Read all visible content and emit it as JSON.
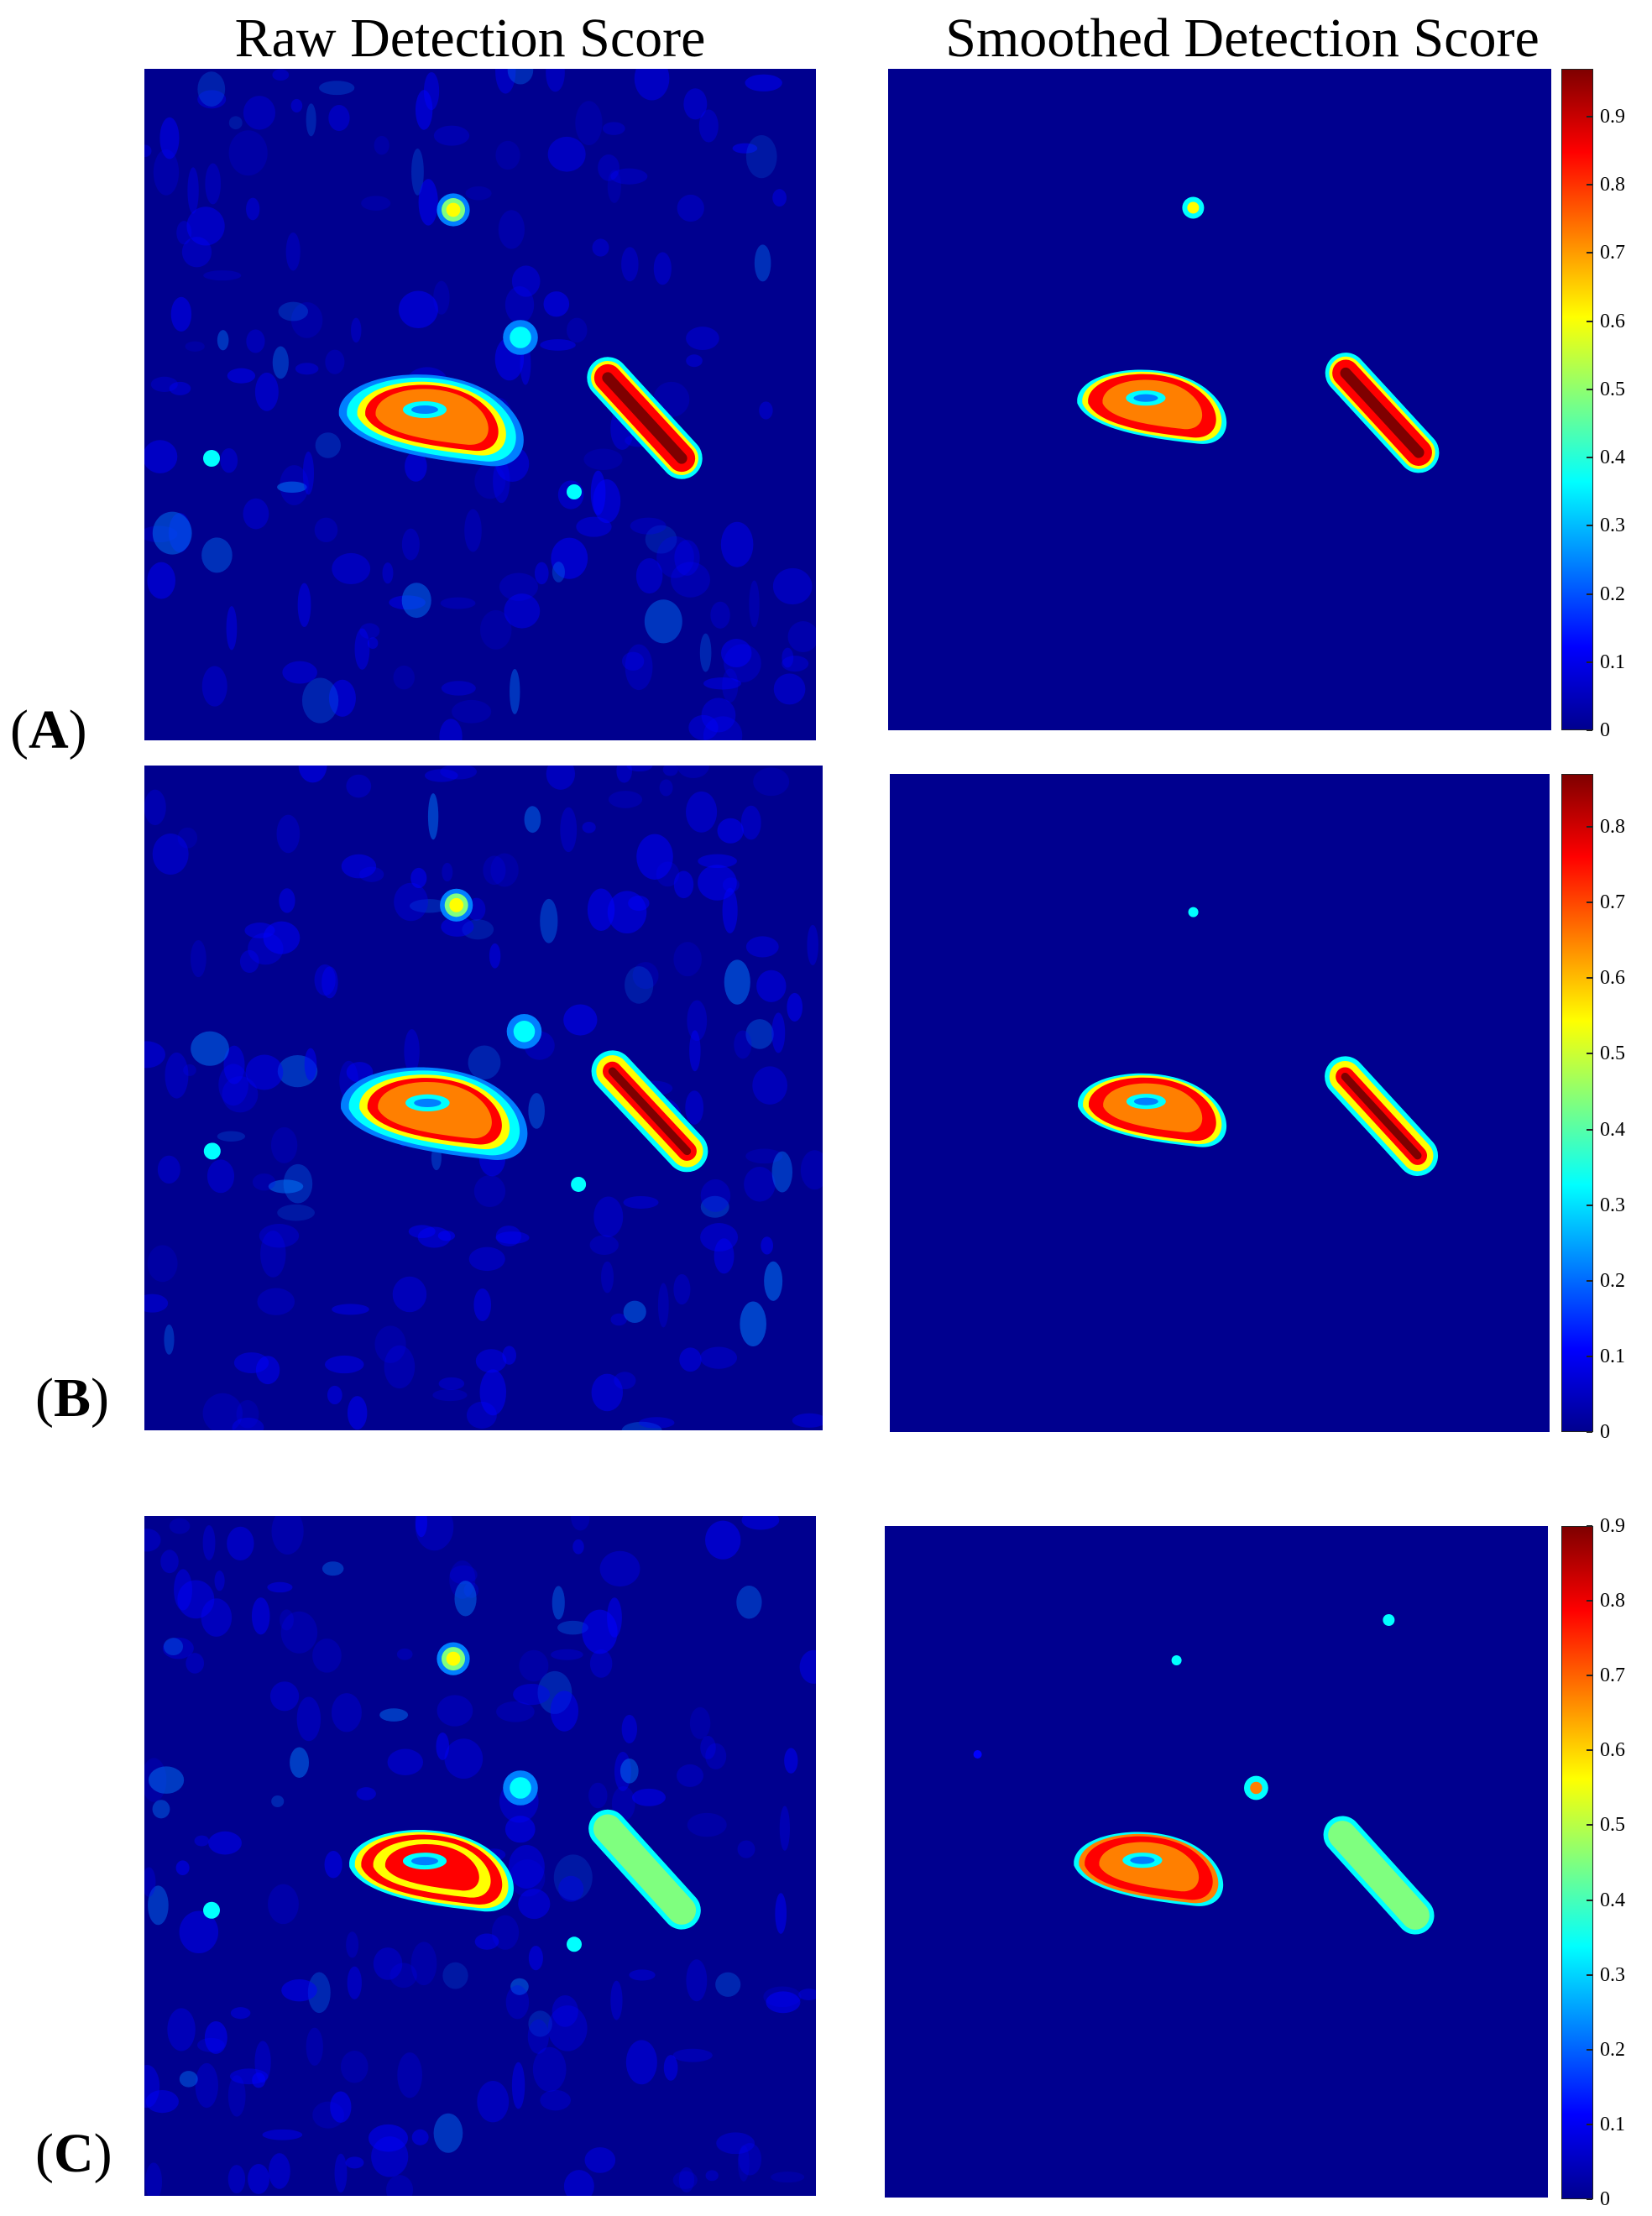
{
  "column_titles": {
    "raw": "Raw Detection Score",
    "smoothed": "Smoothed Detection Score"
  },
  "panels": [
    {
      "id": "A",
      "paren_open": "(",
      "letter": "A",
      "paren_close": ")"
    },
    {
      "id": "B",
      "paren_open": "(",
      "letter": "B",
      "paren_close": ")"
    },
    {
      "id": "C",
      "paren_open": "(",
      "letter": "C",
      "paren_close": ")"
    }
  ],
  "colormap": [
    "#00008f",
    "#0000ff",
    "#007fff",
    "#00ffff",
    "#7fff7f",
    "#ffff00",
    "#ff7f00",
    "#ff0000",
    "#7f0000"
  ],
  "chart_data": [
    {
      "type": "heatmap",
      "panel": "A",
      "title": "Raw Detection Score",
      "colormap": "jet",
      "blobs": "left elongated region, right diagonal streak, small speckles"
    },
    {
      "type": "heatmap",
      "panel": "A",
      "title": "Smoothed Detection Score",
      "colormap": "jet",
      "colorbar": {
        "min": 0,
        "max": 0.97,
        "ticks": [
          0,
          0.1,
          0.2,
          0.3,
          0.4,
          0.5,
          0.6,
          0.7,
          0.8,
          0.9
        ],
        "tick_labels": [
          "0",
          "0.1",
          "0.2",
          "0.3",
          "0.4",
          "0.5",
          "0.6",
          "0.7",
          "0.8",
          "0.9"
        ]
      }
    },
    {
      "type": "heatmap",
      "panel": "B",
      "title": "Raw Detection Score",
      "colormap": "jet"
    },
    {
      "type": "heatmap",
      "panel": "B",
      "title": "Smoothed Detection Score",
      "colormap": "jet",
      "colorbar": {
        "min": 0,
        "max": 0.87,
        "ticks": [
          0,
          0.1,
          0.2,
          0.3,
          0.4,
          0.5,
          0.6,
          0.7,
          0.8
        ],
        "tick_labels": [
          "0",
          "0.1",
          "0.2",
          "0.3",
          "0.4",
          "0.5",
          "0.6",
          "0.7",
          "0.8"
        ]
      }
    },
    {
      "type": "heatmap",
      "panel": "C",
      "title": "Raw Detection Score",
      "colormap": "jet"
    },
    {
      "type": "heatmap",
      "panel": "C",
      "title": "Smoothed Detection Score",
      "colormap": "jet",
      "colorbar": {
        "min": 0,
        "max": 0.9,
        "ticks": [
          0,
          0.1,
          0.2,
          0.3,
          0.4,
          0.5,
          0.6,
          0.7,
          0.8,
          0.9
        ],
        "tick_labels": [
          "0",
          "0.1",
          "0.2",
          "0.3",
          "0.4",
          "0.5",
          "0.6",
          "0.7",
          "0.8",
          "0.9"
        ]
      }
    }
  ]
}
